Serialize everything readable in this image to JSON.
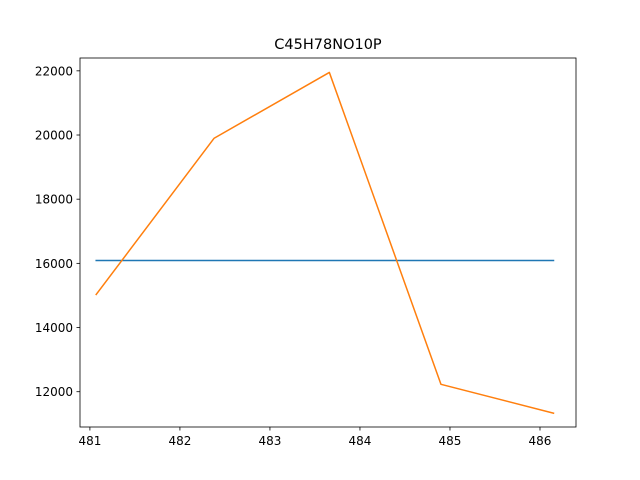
{
  "chart_data": {
    "type": "line",
    "title": "C45H78NO10P",
    "xlabel": "",
    "ylabel": "",
    "xlim": [
      480.89,
      486.4
    ],
    "ylim": [
      10900,
      22400
    ],
    "xticks": [
      481,
      482,
      483,
      484,
      485,
      486
    ],
    "yticks": [
      12000,
      14000,
      16000,
      18000,
      20000,
      22000
    ],
    "grid": false,
    "series": [
      {
        "color": "#1f77b4",
        "x": [
          481.07,
          486.15
        ],
        "y": [
          16090,
          16090
        ]
      },
      {
        "color": "#ff7f0e",
        "x": [
          481.07,
          482.38,
          483.66,
          484.9,
          486.15
        ],
        "y": [
          15030,
          19900,
          21950,
          12230,
          11330
        ]
      }
    ]
  }
}
